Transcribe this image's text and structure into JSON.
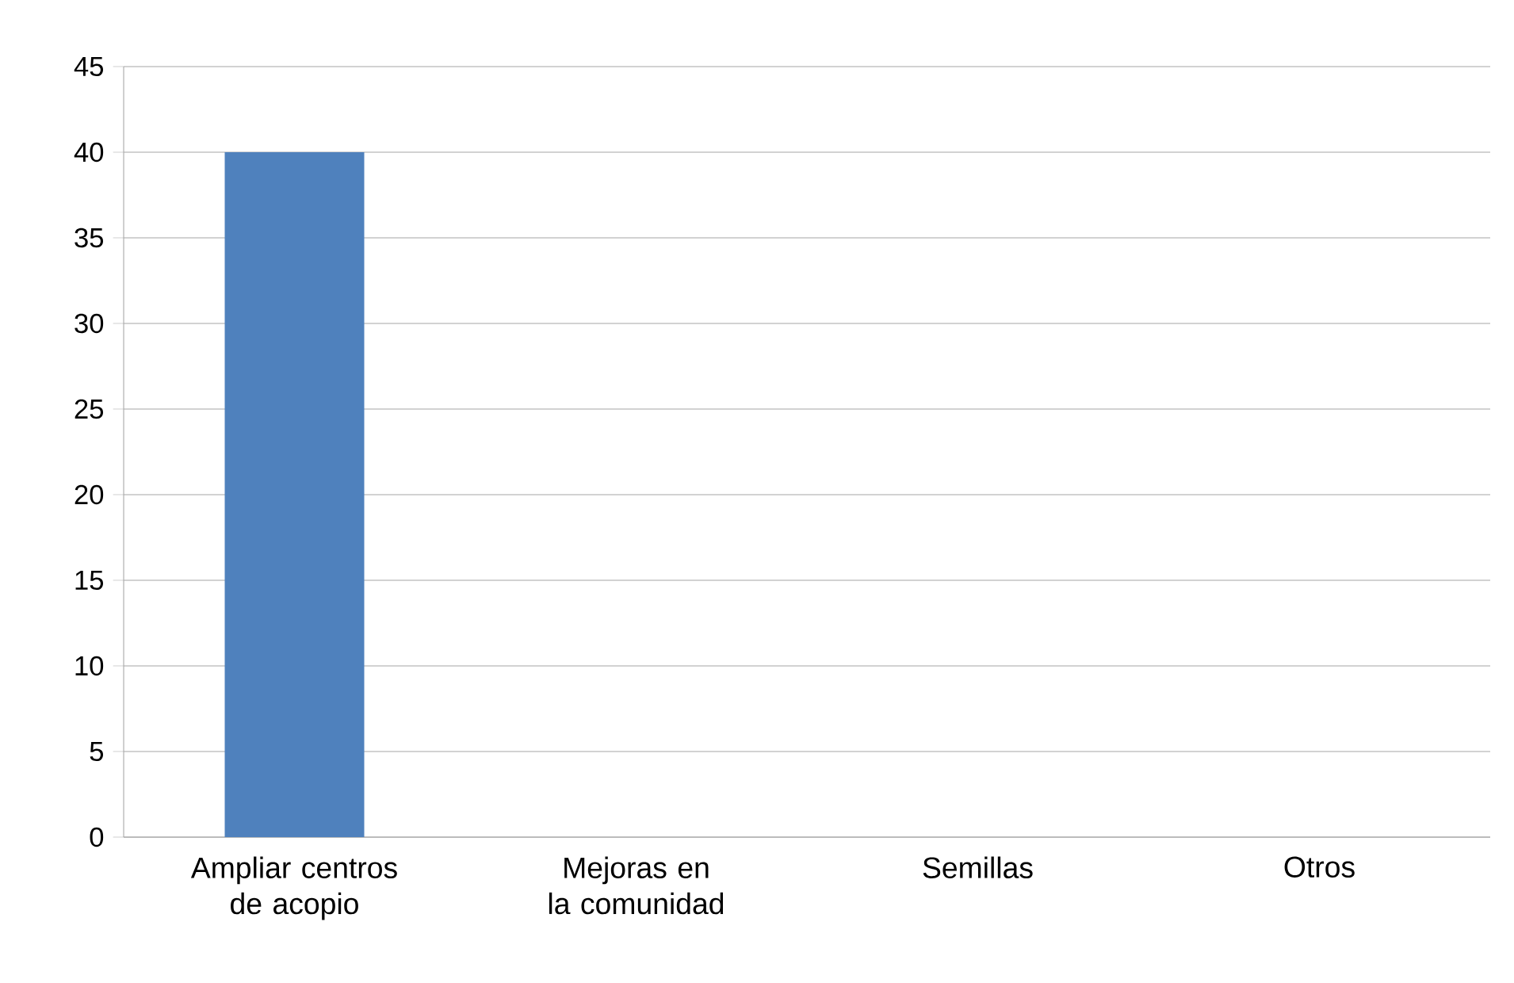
{
  "chart_data": {
    "type": "bar",
    "categories": [
      "Ampliar centros de acopio",
      "Mejoras en la comunidad",
      "Semillas",
      "Otros"
    ],
    "values": [
      40,
      0,
      0,
      0
    ],
    "color": "#4f81bd",
    "ylim": [
      0,
      45
    ],
    "yticks": [
      0,
      5,
      10,
      15,
      20,
      25,
      30,
      35,
      40,
      45
    ],
    "grid": "y"
  }
}
